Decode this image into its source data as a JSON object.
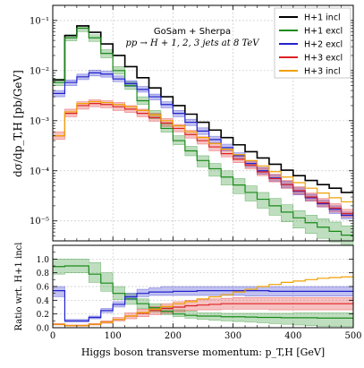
{
  "chart_data": [
    {
      "type": "line",
      "panel": "main",
      "drawstyle": "steps",
      "title": "GoSam + Sherpa",
      "subtitle": "pp → H + 1, 2, 3 jets at 8 TeV",
      "xlabel": "",
      "ylabel": "dσ/dp_T,H [pb/GeV]",
      "yscale": "log",
      "xlim": [
        0,
        500
      ],
      "ylim": [
        4e-06,
        0.2
      ],
      "y_ticks": [
        {
          "v": 1e-05,
          "label": "10⁻⁵"
        },
        {
          "v": 0.0001,
          "label": "10⁻⁴"
        },
        {
          "v": 0.001,
          "label": "10⁻³"
        },
        {
          "v": 0.01,
          "label": "10⁻²"
        },
        {
          "v": 0.1,
          "label": "10⁻¹"
        }
      ],
      "grid": true,
      "legend_position": "top-right",
      "bin_edges": [
        0,
        20,
        40,
        60,
        80,
        100,
        120,
        140,
        160,
        180,
        200,
        220,
        240,
        260,
        280,
        300,
        320,
        340,
        360,
        380,
        400,
        420,
        440,
        460,
        480,
        500
      ],
      "series": [
        {
          "name": "H+1 incl",
          "color": "#000000",
          "values": [
            0.0065,
            0.05,
            0.078,
            0.058,
            0.034,
            0.02,
            0.012,
            0.0072,
            0.0045,
            0.003,
            0.002,
            0.00135,
            0.00093,
            0.00065,
            0.00046,
            0.00033,
            0.00024,
            0.00018,
            0.000135,
            0.000103,
            8e-05,
            6.4e-05,
            5.3e-05,
            4.5e-05,
            3.7e-05
          ]
        },
        {
          "name": "H+1 excl",
          "color": "#1a8a1a",
          "values": [
            0.0058,
            0.045,
            0.07,
            0.045,
            0.022,
            0.01,
            0.005,
            0.0025,
            0.0013,
            0.0007,
            0.0004,
            0.00025,
            0.00016,
            0.00011,
            7.5e-05,
            5.2e-05,
            3.7e-05,
            2.7e-05,
            2e-05,
            1.5e-05,
            1.15e-05,
            9.2e-06,
            7.5e-06,
            6.2e-06,
            5.2e-06
          ],
          "band_lo": [
            0.005,
            0.039,
            0.06,
            0.038,
            0.018,
            0.0085,
            0.0042,
            0.0021,
            0.0011,
            0.00059,
            0.00033,
            0.0002,
            0.00012,
            7.8e-05,
            5.2e-05,
            3.5e-05,
            2.5e-05,
            1.8e-05,
            1.3e-05,
            9.6e-06,
            7.2e-06,
            5.6e-06,
            4.5e-06,
            3.8e-06,
            3.2e-06
          ],
          "band_hi": [
            0.0068,
            0.052,
            0.08,
            0.052,
            0.026,
            0.012,
            0.006,
            0.003,
            0.0016,
            0.00086,
            0.0005,
            0.00031,
            0.0002,
            0.00014,
            0.0001,
            7e-05,
            5e-05,
            3.7e-05,
            2.8e-05,
            2.1e-05,
            1.6e-05,
            1.3e-05,
            1.1e-05,
            9.5e-06,
            8e-06
          ]
        },
        {
          "name": "H+2 excl",
          "color": "#2222cc",
          "values": [
            0.0035,
            0.0058,
            0.0075,
            0.009,
            0.0085,
            0.0068,
            0.0055,
            0.0042,
            0.003,
            0.0021,
            0.0014,
            0.00093,
            0.00062,
            0.00042,
            0.00029,
            0.0002,
            0.00014,
            0.0001,
            7.2e-05,
            5.3e-05,
            3.9e-05,
            2.9e-05,
            2.2e-05,
            1.7e-05,
            1.3e-05
          ],
          "band_lo": [
            0.003,
            0.005,
            0.0066,
            0.0078,
            0.0074,
            0.006,
            0.0048,
            0.0037,
            0.0026,
            0.0018,
            0.0012,
            0.0008,
            0.00053,
            0.00036,
            0.00025,
            0.00017,
            0.00012,
            8.6e-05,
            6.2e-05,
            4.5e-05,
            3.3e-05,
            2.5e-05,
            1.9e-05,
            1.4e-05,
            1.1e-05
          ],
          "band_hi": [
            0.004,
            0.0065,
            0.0085,
            0.0102,
            0.0097,
            0.0078,
            0.0063,
            0.0048,
            0.0034,
            0.0024,
            0.0016,
            0.00107,
            0.00072,
            0.00049,
            0.00034,
            0.00023,
            0.00016,
            0.000117,
            8.4e-05,
            6.2e-05,
            4.6e-05,
            3.4e-05,
            2.6e-05,
            2e-05,
            1.5e-05
          ]
        },
        {
          "name": "H+3 excl",
          "color": "#dd2222",
          "values": [
            0.0005,
            0.0014,
            0.002,
            0.0022,
            0.0021,
            0.0019,
            0.0017,
            0.0014,
            0.00115,
            0.0009,
            0.0007,
            0.00053,
            0.0004,
            0.0003,
            0.00022,
            0.00017,
            0.00013,
            9.5e-05,
            7e-05,
            5.3e-05,
            4e-05,
            3e-05,
            2.3e-05,
            1.8e-05,
            1.4e-05
          ],
          "band_lo": [
            0.00042,
            0.0012,
            0.0017,
            0.0019,
            0.0018,
            0.0016,
            0.00145,
            0.0012,
            0.00098,
            0.00077,
            0.0006,
            0.00045,
            0.00034,
            0.00025,
            0.00019,
            0.000145,
            0.00011,
            8e-05,
            6e-05,
            4.5e-05,
            3.4e-05,
            2.5e-05,
            1.9e-05,
            1.5e-05,
            1.2e-05
          ],
          "band_hi": [
            0.0006,
            0.0017,
            0.0024,
            0.0026,
            0.0025,
            0.0023,
            0.002,
            0.0017,
            0.0014,
            0.0011,
            0.00084,
            0.00064,
            0.00048,
            0.00036,
            0.00027,
            0.00021,
            0.00016,
            0.000115,
            8.5e-05,
            6.4e-05,
            4.8e-05,
            3.6e-05,
            2.8e-05,
            2.2e-05,
            1.7e-05
          ]
        },
        {
          "name": "H+3 incl",
          "color": "#f0a000",
          "values": [
            0.0005,
            0.0015,
            0.0022,
            0.0024,
            0.0023,
            0.0021,
            0.0019,
            0.0016,
            0.0013,
            0.001,
            0.00079,
            0.0006,
            0.00046,
            0.00035,
            0.00027,
            0.00021,
            0.00016,
            0.000125,
            9.6e-05,
            7.5e-05,
            5.8e-05,
            4.5e-05,
            3.6e-05,
            2.9e-05,
            2.4e-05
          ]
        }
      ]
    },
    {
      "type": "line",
      "panel": "ratio",
      "drawstyle": "steps",
      "xlabel": "Higgs boson transverse momentum:  p_T,H [GeV]",
      "ylabel": "Ratio wrt. H+1 incl",
      "xlim": [
        0,
        500
      ],
      "ylim": [
        0,
        1.2
      ],
      "x_ticks": [
        0,
        100,
        200,
        300,
        400,
        500
      ],
      "y_ticks": [
        0,
        0.2,
        0.4,
        0.6,
        0.8,
        1.0
      ],
      "grid": true,
      "bin_edges": [
        0,
        20,
        40,
        60,
        80,
        100,
        120,
        140,
        160,
        180,
        200,
        220,
        240,
        260,
        280,
        300,
        320,
        340,
        360,
        380,
        400,
        420,
        440,
        460,
        480,
        500
      ],
      "series": [
        {
          "name": "H+1 excl",
          "color": "#1a8a1a",
          "values": [
            0.89,
            0.9,
            0.9,
            0.78,
            0.65,
            0.5,
            0.42,
            0.35,
            0.29,
            0.24,
            0.2,
            0.18,
            0.17,
            0.17,
            0.16,
            0.16,
            0.155,
            0.15,
            0.15,
            0.145,
            0.145,
            0.145,
            0.14,
            0.14,
            0.14
          ],
          "band_lo": [
            0.78,
            0.8,
            0.8,
            0.66,
            0.53,
            0.41,
            0.34,
            0.28,
            0.23,
            0.19,
            0.16,
            0.14,
            0.12,
            0.11,
            0.1,
            0.09,
            0.08,
            0.07,
            0.06,
            0.05,
            0.04,
            0.03,
            0.02,
            0.02,
            0.02
          ],
          "band_hi": [
            1.0,
            1.0,
            1.0,
            0.95,
            0.8,
            0.6,
            0.5,
            0.42,
            0.35,
            0.3,
            0.26,
            0.24,
            0.22,
            0.22,
            0.21,
            0.21,
            0.21,
            0.21,
            0.21,
            0.21,
            0.22,
            0.22,
            0.22,
            0.22,
            0.22
          ]
        },
        {
          "name": "H+2 excl",
          "color": "#2222cc",
          "values": [
            0.54,
            0.1,
            0.1,
            0.15,
            0.25,
            0.34,
            0.45,
            0.5,
            0.52,
            0.52,
            0.53,
            0.53,
            0.54,
            0.54,
            0.54,
            0.54,
            0.54,
            0.54,
            0.53,
            0.53,
            0.53,
            0.53,
            0.53,
            0.53,
            0.53
          ],
          "band_lo": [
            0.45,
            0.08,
            0.08,
            0.13,
            0.22,
            0.3,
            0.41,
            0.45,
            0.47,
            0.47,
            0.47,
            0.47,
            0.47,
            0.47,
            0.47,
            0.47,
            0.46,
            0.46,
            0.46,
            0.46,
            0.46,
            0.46,
            0.46,
            0.46,
            0.46
          ],
          "band_hi": [
            0.6,
            0.12,
            0.12,
            0.17,
            0.28,
            0.38,
            0.5,
            0.56,
            0.58,
            0.6,
            0.6,
            0.6,
            0.6,
            0.6,
            0.6,
            0.6,
            0.6,
            0.6,
            0.6,
            0.6,
            0.6,
            0.6,
            0.6,
            0.6,
            0.6
          ]
        },
        {
          "name": "H+3 excl",
          "color": "#dd2222",
          "values": [
            0.05,
            0.03,
            0.03,
            0.05,
            0.08,
            0.12,
            0.17,
            0.21,
            0.25,
            0.28,
            0.3,
            0.32,
            0.33,
            0.34,
            0.35,
            0.35,
            0.35,
            0.35,
            0.35,
            0.35,
            0.35,
            0.35,
            0.35,
            0.35,
            0.35
          ],
          "band_lo": [
            0.04,
            0.025,
            0.025,
            0.04,
            0.065,
            0.1,
            0.13,
            0.16,
            0.19,
            0.21,
            0.23,
            0.25,
            0.26,
            0.26,
            0.27,
            0.27,
            0.27,
            0.27,
            0.26,
            0.26,
            0.26,
            0.26,
            0.26,
            0.26,
            0.26
          ],
          "band_hi": [
            0.06,
            0.04,
            0.04,
            0.06,
            0.1,
            0.15,
            0.22,
            0.27,
            0.31,
            0.35,
            0.38,
            0.4,
            0.41,
            0.42,
            0.43,
            0.44,
            0.44,
            0.44,
            0.44,
            0.44,
            0.44,
            0.44,
            0.44,
            0.44,
            0.44
          ]
        },
        {
          "name": "H+3 incl",
          "color": "#f0a000",
          "values": [
            0.05,
            0.03,
            0.03,
            0.05,
            0.08,
            0.12,
            0.17,
            0.22,
            0.27,
            0.31,
            0.35,
            0.38,
            0.42,
            0.45,
            0.48,
            0.52,
            0.56,
            0.6,
            0.63,
            0.66,
            0.68,
            0.7,
            0.72,
            0.73,
            0.74
          ]
        }
      ]
    }
  ]
}
